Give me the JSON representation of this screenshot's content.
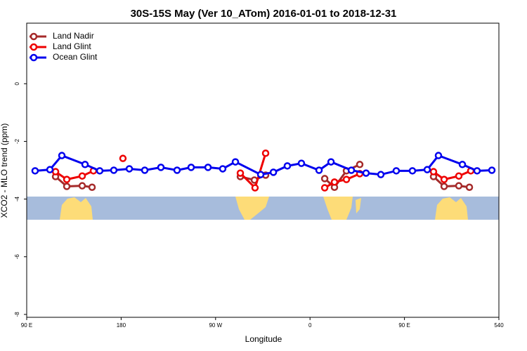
{
  "chart_data": {
    "type": "line",
    "title": "30S-15S May (Ver 10_ATom)   2016-01-01 to 2018-12-31",
    "x_label": "Longitude",
    "y_label": "XCO2 - MLO trend (ppm)",
    "xlim": [
      90,
      540
    ],
    "xticks": [
      {
        "value": 90,
        "label": "90 E"
      },
      180,
      {
        "value": 270,
        "label": "90 W"
      },
      {
        "value": 360,
        "label": "0"
      },
      {
        "value": 450,
        "label": "90 E"
      },
      540
    ],
    "ylim": [
      -8.1,
      2.1
    ],
    "yticks": [
      -8,
      -6,
      -4,
      -2,
      0
    ],
    "legend": "top-left",
    "series": [
      {
        "name": "Land Nadir",
        "color": "#a52a2a",
        "x": [
          117.5,
          128.2,
          142.9,
          152.3,
          null,
          293.6,
          307.0,
          317.7,
          null,
          374.0,
          383.3,
          394.7,
          407.4,
          null,
          477.7,
          487.8,
          501.8,
          511.9
        ],
        "values": [
          -3.22,
          -3.56,
          -3.54,
          -3.59,
          null,
          -3.22,
          -3.34,
          -3.17,
          null,
          -3.29,
          -3.59,
          -3.02,
          -2.8,
          null,
          -3.22,
          -3.56,
          -3.54,
          -3.59
        ]
      },
      {
        "name": "Land Glint",
        "color": "#ee0000",
        "x": [
          117.5,
          128.2,
          142.9,
          153.6,
          null,
          181.7,
          null,
          293.6,
          307.6,
          317.7,
          null,
          374.0,
          383.3,
          394.7,
          407.4,
          null,
          477.7,
          487.8,
          501.8,
          513.2
        ],
        "values": [
          -3.05,
          -3.32,
          -3.2,
          -3.02,
          null,
          -2.59,
          null,
          -3.1,
          -3.61,
          -2.41,
          null,
          -3.61,
          -3.41,
          -3.32,
          -3.12,
          null,
          -3.05,
          -3.32,
          -3.2,
          -3.02
        ]
      },
      {
        "name": "Ocean Glint",
        "color": "#0000ee",
        "x": [
          98.0,
          112.1,
          123.5,
          145.6,
          159.6,
          173.0,
          187.8,
          202.5,
          217.9,
          233.3,
          246.7,
          262.8,
          276.8,
          288.9,
          313.0,
          325.1,
          338.4,
          351.8,
          368.6,
          380.0,
          399.4,
          413.4,
          427.5,
          442.2,
          457.6,
          471.7,
          482.4,
          505.2,
          519.2,
          533.3
        ],
        "values": [
          -3.02,
          -2.98,
          -2.49,
          -2.8,
          -3.02,
          -3.0,
          -2.95,
          -3.0,
          -2.9,
          -3.0,
          -2.9,
          -2.9,
          -2.95,
          -2.71,
          -3.15,
          -3.07,
          -2.85,
          -2.76,
          -3.0,
          -2.71,
          -3.0,
          -3.1,
          -3.15,
          -3.02,
          -3.02,
          -2.98,
          -2.49,
          -2.8,
          -3.02,
          -3.0
        ]
      }
    ]
  }
}
